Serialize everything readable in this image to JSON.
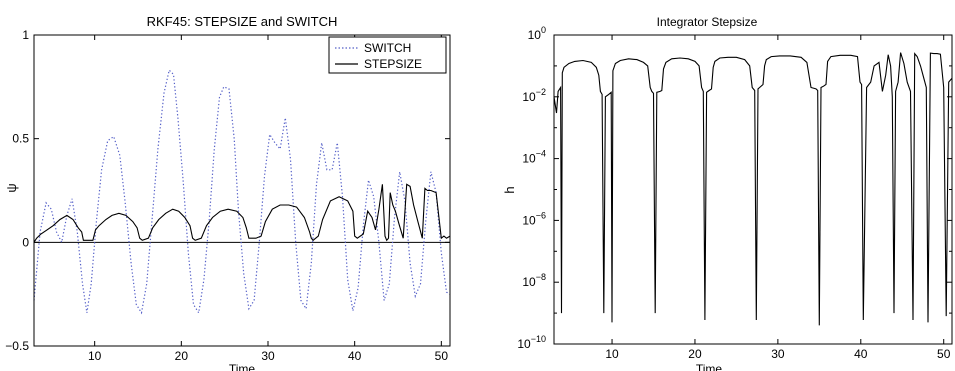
{
  "figure": {
    "background": "#ffffff"
  },
  "chart_data": [
    {
      "type": "line",
      "title": "RKF45: STEPSIZE and SWITCH",
      "xlabel": "Time",
      "ylabel": "ψ",
      "xlim": [
        3,
        51
      ],
      "ylim": [
        -0.5,
        1
      ],
      "xticks": [
        10,
        20,
        30,
        40,
        50
      ],
      "xtick_labels": [
        "10",
        "20",
        "30",
        "40",
        "50"
      ],
      "yticks": [
        -0.5,
        0,
        0.5,
        1
      ],
      "ytick_labels": [
        "−0.5",
        "0",
        "0.5",
        "1"
      ],
      "grid": false,
      "legend": "top-right",
      "reference_line": {
        "y": 0
      },
      "series": [
        {
          "name": "SWITCH",
          "style": "dotted",
          "color": "#5560c8",
          "x": [
            3.0,
            3.7,
            4.4,
            5.0,
            5.6,
            6.2,
            6.8,
            7.4,
            8.0,
            8.6,
            9.1,
            9.6,
            10.2,
            10.8,
            11.5,
            12.2,
            12.9,
            13.5,
            14.2,
            14.8,
            15.4,
            16.0,
            16.6,
            17.3,
            18.0,
            18.6,
            19.1,
            19.6,
            20.2,
            20.8,
            21.4,
            22.0,
            22.6,
            23.2,
            23.8,
            24.4,
            24.9,
            25.5,
            26.1,
            26.6,
            27.2,
            27.8,
            28.4,
            29.0,
            29.6,
            30.2,
            30.8,
            31.4,
            32.0,
            32.6,
            33.2,
            33.8,
            34.4,
            35.0,
            35.6,
            36.2,
            36.8,
            37.4,
            38.0,
            38.6,
            39.2,
            39.8,
            40.4,
            41.0,
            41.6,
            42.2,
            42.8,
            43.4,
            44.0,
            44.6,
            45.2,
            45.8,
            46.4,
            47.0,
            47.6,
            48.2,
            48.8,
            49.4,
            50.0,
            50.6,
            51.0
          ],
          "y": [
            -0.28,
            0.05,
            0.19,
            0.16,
            0.05,
            0.0,
            0.13,
            0.21,
            0.05,
            -0.2,
            -0.34,
            -0.2,
            0.1,
            0.35,
            0.49,
            0.51,
            0.42,
            0.2,
            -0.1,
            -0.3,
            -0.34,
            -0.2,
            0.1,
            0.45,
            0.72,
            0.83,
            0.81,
            0.6,
            0.3,
            -0.05,
            -0.3,
            -0.34,
            -0.18,
            0.1,
            0.45,
            0.7,
            0.75,
            0.74,
            0.5,
            0.15,
            -0.15,
            -0.32,
            -0.28,
            0.0,
            0.32,
            0.52,
            0.48,
            0.45,
            0.6,
            0.4,
            0.0,
            -0.28,
            -0.32,
            -0.1,
            0.28,
            0.48,
            0.35,
            0.35,
            0.48,
            0.22,
            -0.18,
            -0.33,
            -0.22,
            0.08,
            0.3,
            0.22,
            0.0,
            -0.28,
            -0.2,
            0.12,
            0.34,
            0.2,
            -0.1,
            -0.26,
            -0.2,
            0.1,
            0.34,
            0.24,
            -0.05,
            -0.24,
            -0.25
          ]
        },
        {
          "name": "STEPSIZE",
          "style": "solid",
          "color": "#000000",
          "x": [
            3.0,
            3.3,
            3.8,
            4.5,
            5.2,
            6.0,
            6.8,
            7.5,
            8.1,
            8.5,
            8.7,
            9.2,
            9.8,
            10.1,
            10.5,
            11.3,
            12.0,
            12.8,
            13.6,
            14.4,
            14.9,
            15.2,
            15.5,
            16.2,
            16.7,
            17.4,
            18.2,
            19.0,
            19.7,
            20.4,
            21.0,
            21.3,
            21.6,
            22.3,
            22.9,
            23.6,
            24.5,
            25.4,
            26.4,
            27.1,
            27.5,
            27.8,
            28.6,
            29.2,
            29.7,
            30.5,
            31.4,
            32.4,
            33.3,
            34.2,
            34.8,
            35.0,
            35.2,
            35.8,
            36.3,
            37.2,
            38.2,
            39.2,
            39.8,
            40.0,
            40.3,
            41.0,
            41.5,
            42.0,
            42.4,
            42.8,
            43.2,
            43.5,
            43.7,
            43.9,
            44.1,
            44.4,
            44.7,
            45.1,
            45.6,
            46.0,
            46.4,
            46.8,
            47.3,
            47.8,
            48.1,
            48.4,
            48.8,
            49.4,
            50.0,
            50.3,
            50.6,
            51.0
          ],
          "y": [
            0.0,
            0.02,
            0.04,
            0.06,
            0.08,
            0.11,
            0.13,
            0.11,
            0.07,
            0.05,
            0.01,
            0.01,
            0.01,
            0.06,
            0.08,
            0.11,
            0.13,
            0.14,
            0.13,
            0.1,
            0.07,
            0.02,
            0.01,
            0.02,
            0.07,
            0.11,
            0.14,
            0.16,
            0.15,
            0.12,
            0.08,
            0.02,
            0.01,
            0.02,
            0.08,
            0.12,
            0.15,
            0.16,
            0.15,
            0.12,
            0.07,
            0.02,
            0.02,
            0.03,
            0.1,
            0.16,
            0.18,
            0.18,
            0.17,
            0.12,
            0.05,
            0.02,
            0.01,
            0.03,
            0.11,
            0.2,
            0.22,
            0.2,
            0.15,
            0.03,
            0.02,
            0.04,
            0.15,
            0.12,
            0.06,
            0.16,
            0.28,
            0.03,
            0.01,
            0.02,
            0.24,
            0.18,
            0.15,
            0.09,
            0.02,
            0.28,
            0.27,
            0.18,
            0.1,
            0.02,
            0.26,
            0.25,
            0.25,
            0.24,
            0.02,
            0.03,
            0.02,
            0.03
          ]
        }
      ]
    },
    {
      "type": "line",
      "title": "Integrator Stepsize",
      "xlabel": "Time",
      "ylabel": "h",
      "xlim": [
        3,
        51
      ],
      "ylim": [
        1e-10,
        1
      ],
      "yscale": "log",
      "xticks": [
        10,
        20,
        30,
        40,
        50
      ],
      "xtick_labels": [
        "10",
        "20",
        "30",
        "40",
        "50"
      ],
      "ytick_mantissa": "10",
      "ytick_exponents": [
        "0",
        "−2",
        "−4",
        "−6",
        "−8",
        "−10"
      ],
      "grid": false,
      "series": [
        {
          "style": "solid",
          "color": "#000000",
          "x": [
            3.0,
            3.3,
            3.5,
            3.8,
            3.9,
            4.0,
            4.2,
            4.8,
            5.5,
            6.5,
            7.5,
            8.1,
            8.4,
            8.6,
            8.8,
            9.0,
            9.2,
            9.6,
            9.9,
            10.0,
            10.1,
            10.4,
            11.0,
            12.0,
            13.0,
            13.8,
            14.3,
            14.6,
            14.8,
            15.0,
            15.2,
            15.4,
            15.8,
            16.0,
            16.2,
            16.5,
            17.2,
            18.2,
            19.2,
            20.0,
            20.5,
            20.8,
            21.0,
            21.2,
            21.4,
            21.7,
            22.0,
            22.2,
            22.4,
            23.0,
            24.0,
            25.0,
            26.0,
            26.6,
            26.9,
            27.2,
            27.4,
            27.6,
            27.8,
            28.2,
            28.4,
            28.6,
            29.2,
            30.2,
            31.5,
            32.8,
            33.5,
            34.0,
            34.6,
            34.8,
            35.0,
            35.2,
            35.5,
            35.8,
            36.0,
            36.4,
            37.5,
            38.8,
            39.6,
            39.9,
            40.1,
            40.3,
            40.7,
            41.2,
            41.6,
            42.2,
            42.6,
            43.0,
            43.3,
            43.6,
            43.8,
            44.0,
            44.2,
            44.5,
            44.8,
            45.2,
            45.6,
            46.0,
            46.3,
            46.5,
            46.8,
            47.2,
            47.6,
            47.9,
            48.1,
            48.4,
            48.8,
            49.2,
            49.6,
            50.0,
            50.3,
            50.6,
            51.0
          ],
          "y": [
            0.01,
            0.003,
            0.015,
            0.02,
            1e-09,
            0.06,
            0.09,
            0.12,
            0.14,
            0.15,
            0.13,
            0.09,
            0.05,
            0.015,
            0.012,
            1e-09,
            0.01,
            0.012,
            0.014,
            5e-10,
            0.07,
            0.12,
            0.15,
            0.17,
            0.16,
            0.13,
            0.1,
            0.02,
            0.015,
            0.013,
            1e-09,
            0.014,
            0.015,
            0.016,
            0.08,
            0.13,
            0.17,
            0.18,
            0.17,
            0.14,
            0.1,
            0.02,
            0.015,
            6e-10,
            0.014,
            0.016,
            0.018,
            0.09,
            0.14,
            0.18,
            0.19,
            0.19,
            0.16,
            0.1,
            0.02,
            0.016,
            6e-10,
            0.018,
            0.02,
            0.025,
            0.1,
            0.16,
            0.2,
            0.21,
            0.21,
            0.19,
            0.13,
            0.02,
            0.018,
            0.016,
            4e-10,
            0.02,
            0.022,
            0.025,
            0.14,
            0.2,
            0.22,
            0.22,
            0.2,
            0.03,
            0.025,
            6e-10,
            0.02,
            0.03,
            0.1,
            0.13,
            0.015,
            0.05,
            0.23,
            0.1,
            0.01,
            1e-09,
            0.015,
            0.03,
            0.27,
            0.12,
            0.03,
            0.015,
            6e-10,
            0.25,
            0.2,
            0.1,
            0.04,
            0.02,
            5e-10,
            0.26,
            0.25,
            0.25,
            0.24,
            0.02,
            8e-10,
            0.03,
            0.04
          ]
        }
      ]
    }
  ]
}
